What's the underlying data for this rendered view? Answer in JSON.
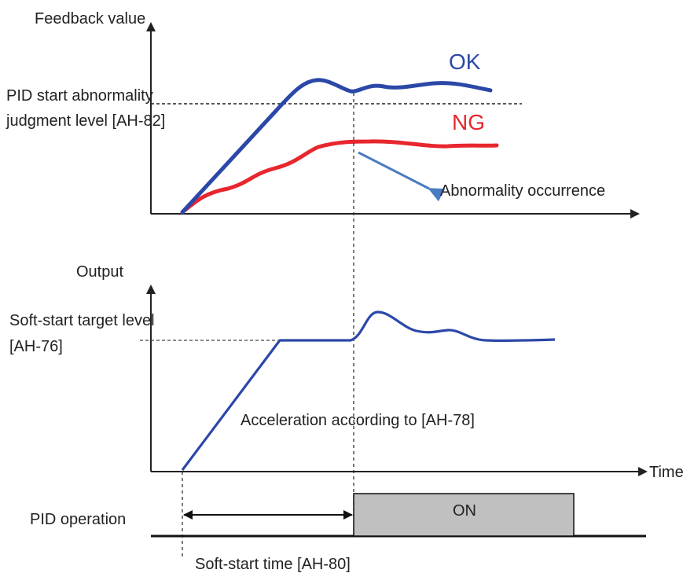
{
  "feedback_chart": {
    "y_axis_label": "Feedback value",
    "threshold_label_line1": "PID start abnormality",
    "threshold_label_line2": "judgment level [AH-82]",
    "ok_label": "OK",
    "ng_label": "NG",
    "annotation": "Abnormality occurrence",
    "ok_color": "#2b48a8",
    "ng_color": "#e8262e",
    "arrow_color": "#4a7cc2"
  },
  "output_chart": {
    "y_axis_label": "Output",
    "target_label_line1": "Soft-start target level",
    "target_label_line2": "[AH-76]",
    "acceleration_label": "Acceleration according to [AH-78]",
    "x_axis_label": "Time",
    "line_color": "#2b48a8"
  },
  "pid_operation": {
    "label": "PID operation",
    "on_label": "ON",
    "on_fill": "#c0c0c0",
    "soft_start_time_label": "Soft-start time [AH-80]"
  }
}
